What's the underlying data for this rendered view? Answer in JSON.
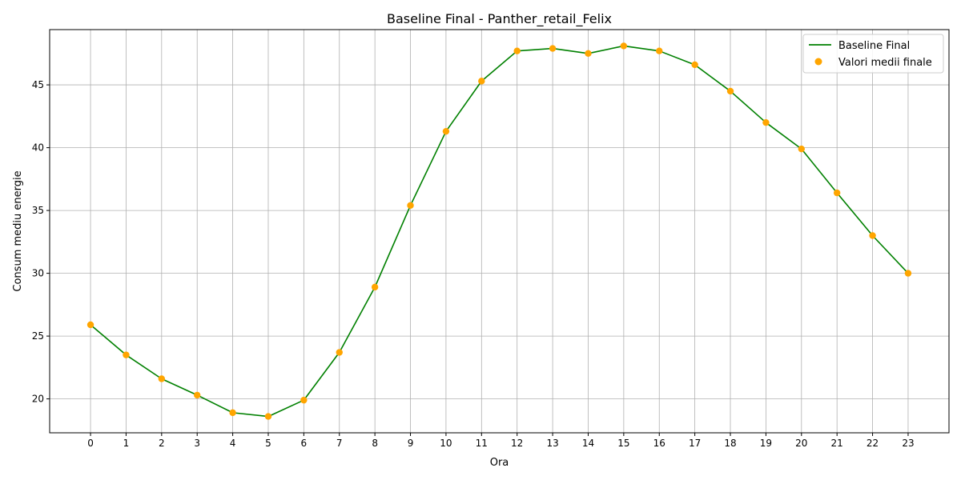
{
  "chart_data": {
    "type": "line",
    "title": "Baseline Final - Panther_retail_Felix",
    "xlabel": "Ora",
    "ylabel": "Consum mediu energie",
    "x": [
      0,
      1,
      2,
      3,
      4,
      5,
      6,
      7,
      8,
      9,
      10,
      11,
      12,
      13,
      14,
      15,
      16,
      17,
      18,
      19,
      20,
      21,
      22,
      23
    ],
    "xlim": [
      -1.15,
      24.15
    ],
    "ylim": [
      17.3,
      49.4
    ],
    "yticks": [
      20,
      25,
      30,
      35,
      40,
      45
    ],
    "grid": true,
    "legend_position": "top-right",
    "series": [
      {
        "name": "Baseline Final",
        "kind": "line",
        "color": "#008000",
        "values": [
          25.9,
          23.5,
          21.6,
          20.3,
          18.9,
          18.6,
          19.9,
          23.7,
          28.9,
          35.4,
          41.3,
          45.3,
          47.7,
          47.9,
          47.5,
          48.1,
          47.7,
          46.6,
          44.5,
          42.0,
          39.9,
          36.4,
          33.0,
          30.0
        ]
      },
      {
        "name": "Valori medii finale",
        "kind": "scatter",
        "color": "#FFA500",
        "values": [
          25.9,
          23.5,
          21.6,
          20.3,
          18.9,
          18.6,
          19.9,
          23.7,
          28.9,
          35.4,
          41.3,
          45.3,
          47.7,
          47.9,
          47.5,
          48.1,
          47.7,
          46.6,
          44.5,
          42.0,
          39.9,
          36.4,
          33.0,
          30.0
        ]
      }
    ]
  }
}
